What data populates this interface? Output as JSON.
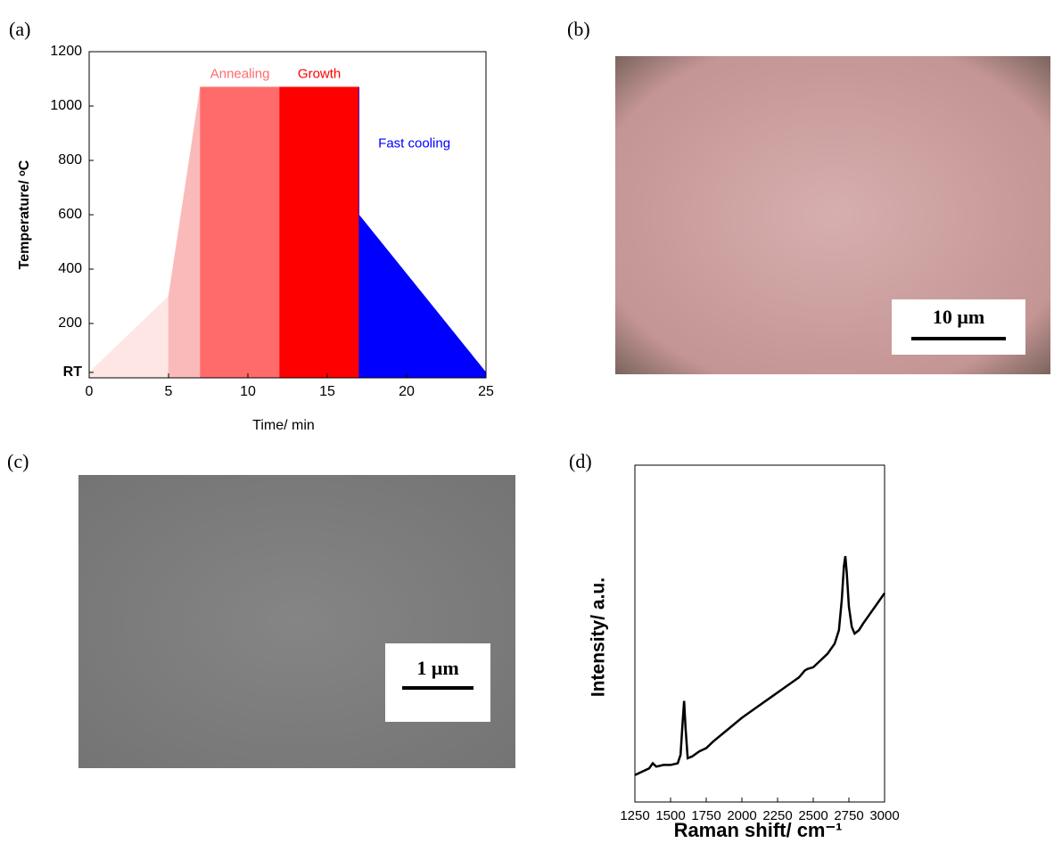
{
  "chart_data": [
    {
      "type": "area",
      "panel_label": "(a)",
      "x_label": "Time/ min",
      "y_label": "Temperature/ ᵒC",
      "xlim": [
        0,
        25
      ],
      "xticks": [
        0,
        5,
        10,
        15,
        20,
        25
      ],
      "ylim": [
        0,
        1200
      ],
      "yticks": [
        {
          "value": 20,
          "label": "RT"
        },
        200,
        400,
        600,
        800,
        1000,
        1200
      ],
      "series": [
        {
          "color": "#fde6e4",
          "x": [
            0,
            5
          ],
          "values": [
            20,
            300
          ]
        },
        {
          "color": "#fbbaba",
          "x": [
            5,
            7
          ],
          "values": [
            300,
            1070
          ]
        },
        {
          "name": "Annealing",
          "color": "#ff6b6b",
          "x": [
            7,
            12
          ],
          "values": [
            1070,
            1070
          ]
        },
        {
          "name": "Growth",
          "color": "#ff0000",
          "x": [
            12,
            17
          ],
          "values": [
            1070,
            1070
          ]
        },
        {
          "name": "Fast cooling",
          "color": "#0000ff",
          "x": [
            17,
            17,
            25
          ],
          "values": [
            1070,
            600,
            20
          ]
        }
      ]
    },
    {
      "type": "line",
      "panel_label": "(d)",
      "x_label": "Raman shift/ cm⁻¹",
      "y_label": "Intensity/ a.u.",
      "xlim": [
        1250,
        3000
      ],
      "xticks": [
        1250,
        1500,
        1750,
        2000,
        2250,
        2500,
        2750,
        3000
      ],
      "ylim": [
        0,
        100
      ],
      "series": [
        {
          "color": "#000000",
          "x": [
            1250,
            1300,
            1350,
            1375,
            1400,
            1450,
            1500,
            1550,
            1570,
            1585,
            1595,
            1605,
            1620,
            1650,
            1700,
            1750,
            1800,
            1900,
            2000,
            2100,
            2200,
            2300,
            2400,
            2440,
            2460,
            2500,
            2550,
            2600,
            2650,
            2680,
            2700,
            2715,
            2725,
            2735,
            2750,
            2770,
            2790,
            2820,
            2850,
            2900,
            2950,
            3000
          ],
          "values": [
            8,
            9,
            10,
            11.5,
            10.5,
            11,
            11,
            11.5,
            14,
            24,
            30,
            22,
            13,
            13.5,
            15,
            16,
            18,
            21.5,
            25,
            28,
            31,
            34,
            37,
            39,
            39.5,
            40,
            42,
            44,
            47,
            51,
            60,
            70,
            73,
            68,
            58,
            52,
            50,
            51,
            53,
            56,
            59,
            62
          ]
        }
      ]
    }
  ],
  "images": [
    {
      "panel_label": "(b)",
      "scale_bar": "10 μm"
    },
    {
      "panel_label": "(c)",
      "scale_bar": "1 μm"
    }
  ]
}
